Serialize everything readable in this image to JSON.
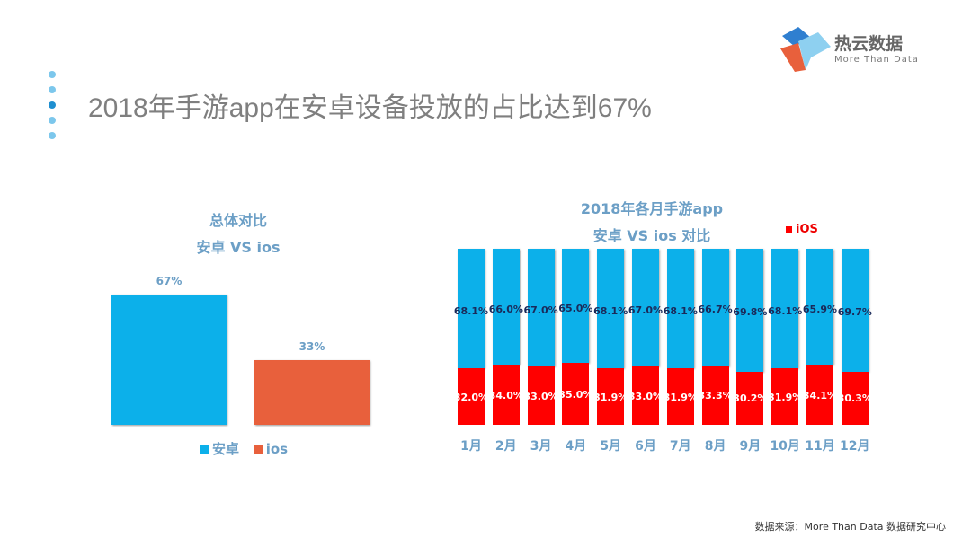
{
  "title": "2018年手游app在安卓设备投放的占比达到67%",
  "logo": {
    "cn": "热云数据",
    "en": "More Than Data"
  },
  "source": "数据来源：More Than Data 数据研究中心",
  "colors": {
    "android": "#0cb0ea",
    "ios_left": "#e8603c",
    "ios_right": "#ff0000"
  },
  "chart_data": [
    {
      "type": "bar",
      "title": "总体对比 安卓 VS ios",
      "title_lines": [
        "总体对比",
        "安卓 VS ios"
      ],
      "categories": [
        "安卓",
        "ios"
      ],
      "values": [
        67,
        33
      ],
      "labels": [
        "67%",
        "33%"
      ],
      "legend": [
        "安卓",
        "ios"
      ],
      "legend_position": "bottom",
      "ylim": [
        0,
        100
      ]
    },
    {
      "type": "bar",
      "stacked": true,
      "title_lines": [
        "2018年各月手游app",
        "安卓 VS ios 对比"
      ],
      "categories": [
        "1月",
        "2月",
        "3月",
        "4月",
        "5月",
        "6月",
        "7月",
        "8月",
        "9月",
        "10月",
        "11月",
        "12月"
      ],
      "series": [
        {
          "name": "Android",
          "values": [
            68.1,
            66.0,
            67.0,
            65.0,
            68.1,
            67.0,
            68.1,
            66.7,
            69.8,
            68.1,
            65.9,
            69.7
          ],
          "labels": [
            "68.1%",
            "66.0%",
            "67.0%",
            "65.0%",
            "68.1%",
            "67.0%",
            "68.1%",
            "66.7%",
            "69.8%",
            "68.1%",
            "65.9%",
            "69.7%"
          ]
        },
        {
          "name": "iOS",
          "values": [
            32.0,
            34.0,
            33.0,
            35.0,
            31.9,
            33.0,
            31.9,
            33.3,
            30.2,
            31.9,
            34.1,
            30.3
          ],
          "labels": [
            "32.0%",
            "34.0%",
            "33.0%",
            "35.0%",
            "31.9%",
            "33.0%",
            "31.9%",
            "33.3%",
            "30.2%",
            "31.9%",
            "34.1%",
            "30.3%"
          ]
        }
      ],
      "legend": [
        "iOS"
      ],
      "legend_position": "top-right",
      "ylim": [
        0,
        100
      ]
    }
  ]
}
